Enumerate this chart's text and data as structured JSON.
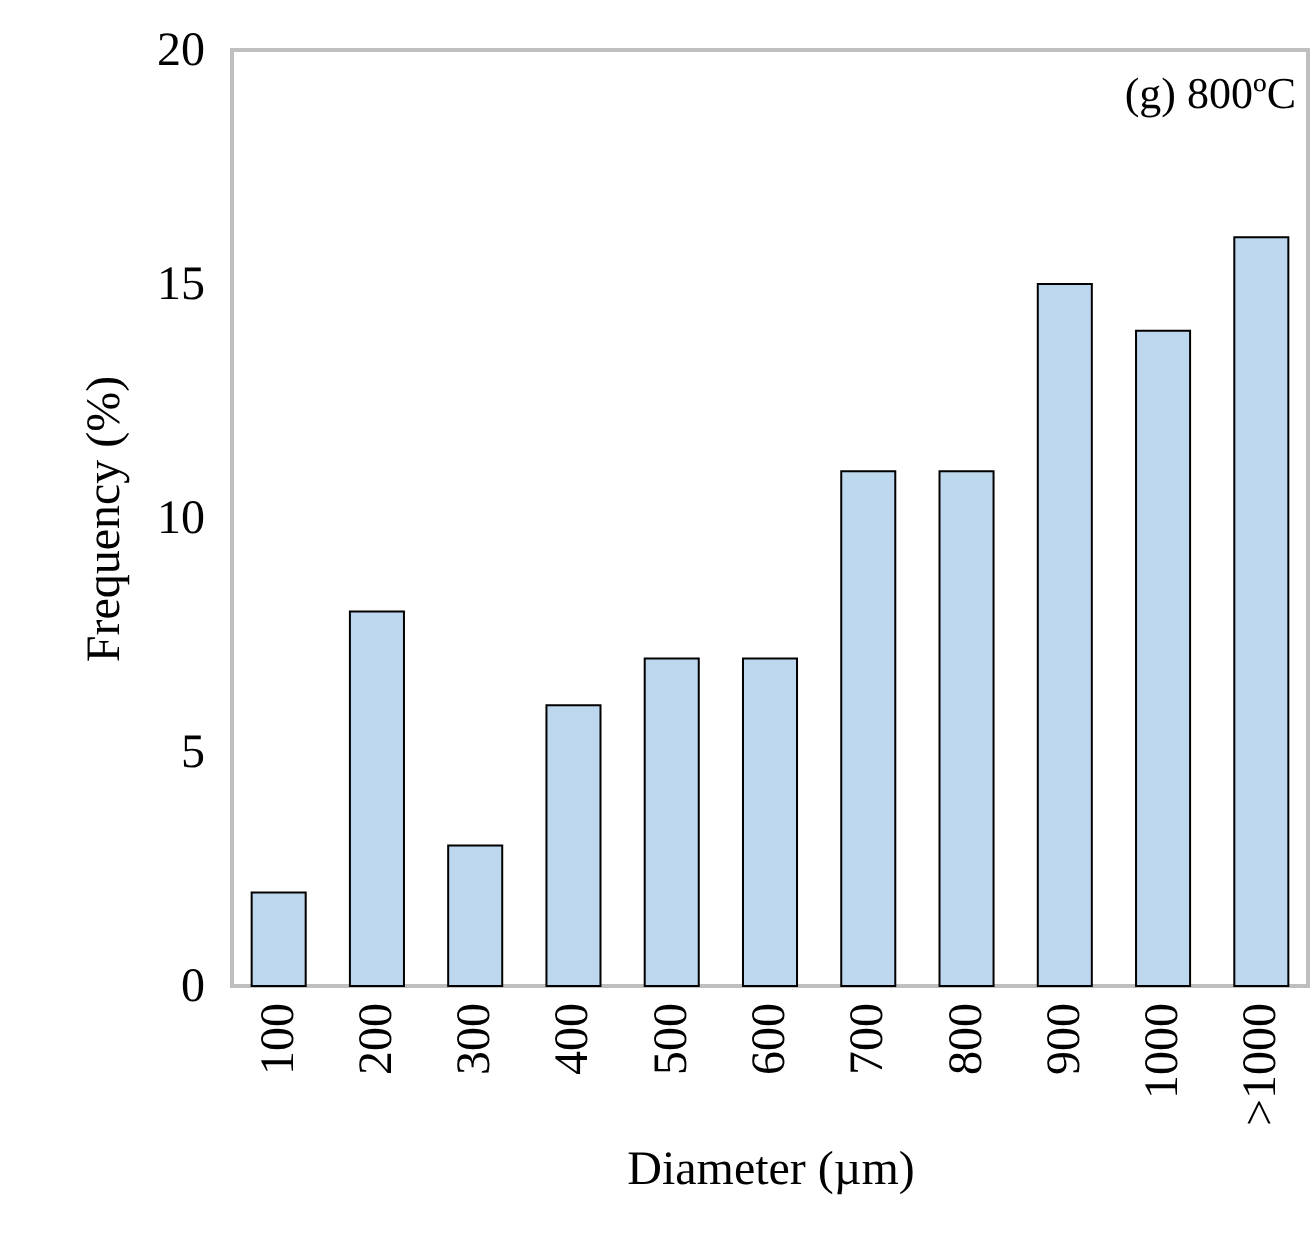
{
  "chart_data": {
    "type": "bar",
    "xlabel": "Diameter (µm)",
    "ylabel": "Frequency (%)",
    "categories": [
      "100",
      "200",
      "300",
      "400",
      "500",
      "600",
      "700",
      "800",
      "900",
      "1000",
      ">1000"
    ],
    "values": [
      2,
      8,
      3,
      6,
      7,
      7,
      11,
      11,
      15,
      14,
      16
    ],
    "color": "#bdd7ee",
    "ylim": [
      0,
      20
    ],
    "yticks": [
      0,
      5,
      10,
      15,
      20
    ],
    "grid": false,
    "annotations": [
      "(g) 800ºC"
    ]
  }
}
